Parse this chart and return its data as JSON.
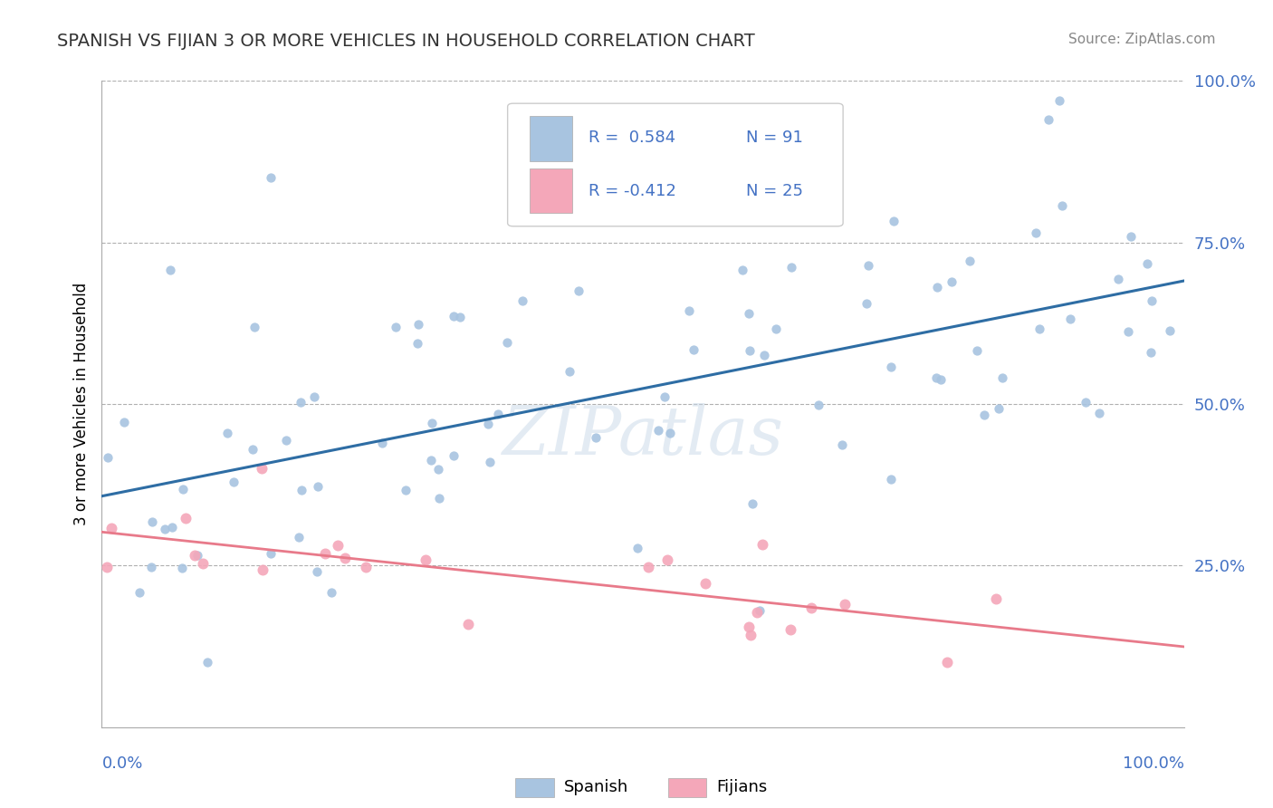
{
  "title": "SPANISH VS FIJIAN 3 OR MORE VEHICLES IN HOUSEHOLD CORRELATION CHART",
  "source_text": "Source: ZipAtlas.com",
  "ylabel": "3 or more Vehicles in Household",
  "watermark": "ZIPatlas",
  "legend_r_spanish": "R =  0.584",
  "legend_n_spanish": "N = 91",
  "legend_r_fijian": "R = -0.412",
  "legend_n_fijian": "N = 25",
  "spanish_color": "#a8c4e0",
  "fijian_color": "#f4a7b9",
  "spanish_line_color": "#2e6da4",
  "fijian_line_color": "#e87a8a",
  "tick_color": "#4472c4",
  "grid_color": "#b0b0b0",
  "title_color": "#333333",
  "source_color": "#888888"
}
